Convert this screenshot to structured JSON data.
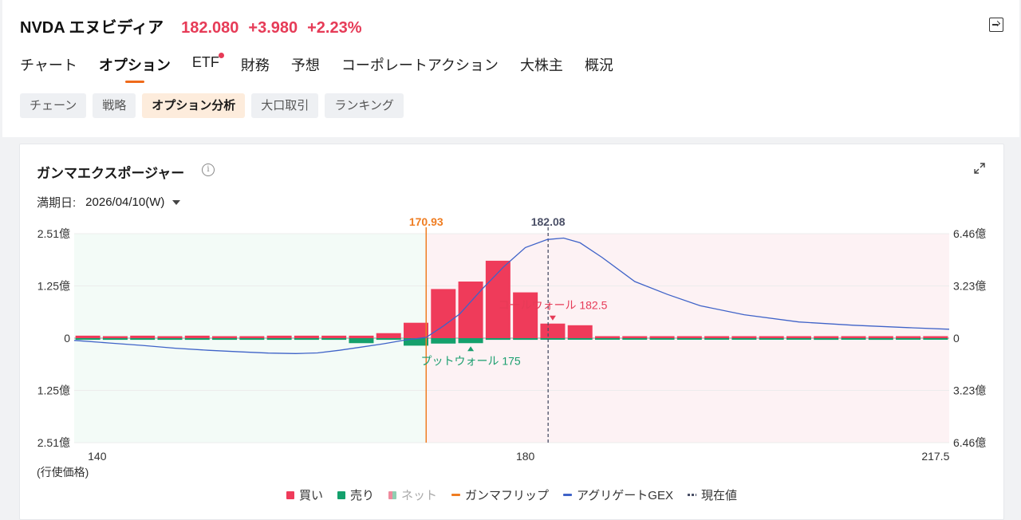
{
  "header": {
    "symbol": "NVDA エヌビディア",
    "price": "182.080",
    "change": "+3.980",
    "change_pct": "+2.23%",
    "up_color": "#e63b57"
  },
  "tabs": [
    {
      "label": "チャート"
    },
    {
      "label": "オプション",
      "active": true
    },
    {
      "label": "ETF",
      "badge": true
    },
    {
      "label": "財務"
    },
    {
      "label": "予想"
    },
    {
      "label": "コーポレートアクション"
    },
    {
      "label": "大株主"
    },
    {
      "label": "概況"
    }
  ],
  "subtabs": [
    {
      "label": "チェーン"
    },
    {
      "label": "戦略"
    },
    {
      "label": "オプション分析",
      "active": true
    },
    {
      "label": "大口取引"
    },
    {
      "label": "ランキング"
    }
  ],
  "card": {
    "title": "ガンマエクスポージャー",
    "expiry_label": "満期日:",
    "expiry_value": "2026/04/10(W)"
  },
  "chart_data": {
    "type": "bar",
    "xlabel": "(行使価格)",
    "x_tick_labels": [
      "140",
      "180",
      "217.5"
    ],
    "x_range": [
      138.75,
      218.75
    ],
    "y_left_ticks": [
      "2.51億",
      "1.25億",
      "0",
      "1.25億",
      "2.51億"
    ],
    "y_left_range": [
      -2.51,
      2.51
    ],
    "y_right_ticks": [
      "6.46億",
      "3.23億",
      "0",
      "3.23億",
      "6.46億"
    ],
    "y_right_range": [
      -6.46,
      6.46
    ],
    "gamma_flip": {
      "value": 170.93,
      "label": "170.93",
      "color": "#ef7d22"
    },
    "current_price": {
      "value": 182.08,
      "label": "182.08",
      "color": "#4a4f66"
    },
    "call_wall": {
      "strike": 182.5,
      "label": "コールウォール 182.5",
      "color": "#e63b57"
    },
    "put_wall": {
      "strike": 175,
      "label": "プットウォール 175",
      "color": "#1a9e6e"
    },
    "strikes": [
      140,
      142.5,
      145,
      147.5,
      150,
      152.5,
      155,
      157.5,
      160,
      162.5,
      165,
      167.5,
      170,
      172.5,
      175,
      177.5,
      180,
      182.5,
      185,
      187.5,
      190,
      192.5,
      195,
      197.5,
      200,
      202.5,
      205,
      207.5,
      210,
      212.5,
      215,
      217.5
    ],
    "series": [
      {
        "name": "買い",
        "color": "#ef3b5a",
        "values": [
          0.06,
          0.03,
          0.06,
          0.03,
          0.06,
          0.03,
          0.03,
          0.06,
          0.06,
          0.06,
          0.06,
          0.12,
          0.37,
          1.18,
          1.36,
          1.86,
          1.1,
          0.35,
          0.31,
          0.04,
          0.04,
          0.04,
          0.04,
          0.04,
          0.04,
          0.04,
          0.04,
          0.03,
          0.03,
          0.03,
          0.03,
          0.04
        ]
      },
      {
        "name": "売り",
        "color": "#14a06c",
        "values": [
          -0.04,
          -0.04,
          -0.04,
          -0.04,
          -0.04,
          -0.04,
          -0.04,
          -0.04,
          -0.04,
          -0.04,
          -0.12,
          -0.04,
          -0.18,
          -0.13,
          -0.12,
          -0.04,
          -0.04,
          -0.02,
          -0.02,
          -0.01,
          -0.01,
          -0.01,
          -0.01,
          -0.01,
          -0.01,
          -0.01,
          -0.01,
          -0.04,
          -0.01,
          -0.04,
          -0.01,
          -0.01
        ]
      },
      {
        "name": "ネット",
        "color": "#a9a9a9"
      },
      {
        "name": "ガンマフリップ",
        "color": "#ef7d22"
      },
      {
        "name": "アグリゲートGEX",
        "color": "#3f63c8",
        "axis": "right",
        "x": [
          138.75,
          142,
          145,
          148,
          151,
          154,
          156.5,
          159,
          161,
          163,
          165,
          167,
          169,
          170.93,
          172.5,
          174,
          176,
          178,
          180,
          182,
          183.5,
          185,
          187,
          190,
          193,
          196,
          200,
          205,
          210,
          215,
          218.75
        ],
        "values": [
          -0.14,
          -0.3,
          -0.45,
          -0.62,
          -0.75,
          -0.85,
          -0.92,
          -0.95,
          -0.91,
          -0.75,
          -0.55,
          -0.35,
          -0.12,
          0.05,
          0.75,
          1.5,
          3.0,
          4.4,
          5.6,
          6.1,
          6.19,
          5.9,
          5.0,
          3.5,
          2.7,
          2.0,
          1.45,
          1.0,
          0.8,
          0.65,
          0.55
        ]
      },
      {
        "name": "現在値",
        "color": "#4a4f66"
      }
    ],
    "regions": {
      "negative_color": "#f3fbf7",
      "positive_color": "#fdf2f4"
    },
    "legend_position": "bottom"
  }
}
